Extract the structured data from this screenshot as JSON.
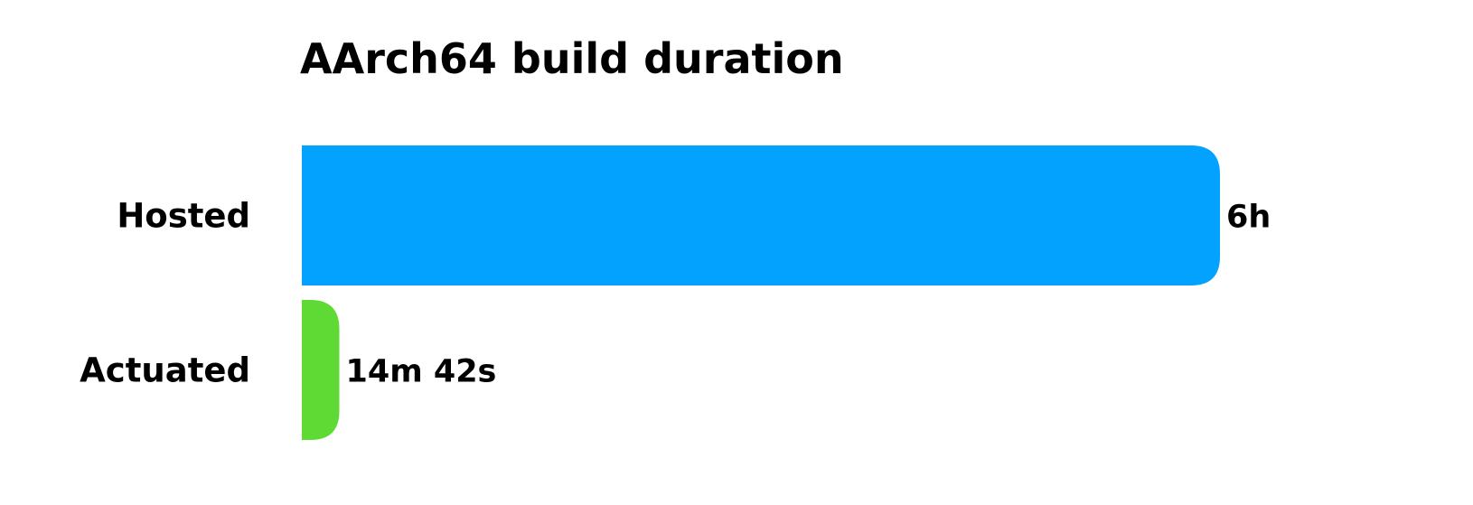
{
  "chart_data": {
    "type": "bar",
    "orientation": "horizontal",
    "title": "AArch64  build duration",
    "xlabel": "",
    "ylabel": "",
    "categories": [
      "Hosted",
      "Actuated"
    ],
    "values": [
      360,
      14.7
    ],
    "value_unit": "minutes",
    "value_labels": [
      "6h",
      "14m 42s"
    ],
    "colors": [
      "#03a2ff",
      "#5fda35"
    ],
    "xlim": [
      0,
      360
    ],
    "grid": false,
    "legend": "none"
  }
}
